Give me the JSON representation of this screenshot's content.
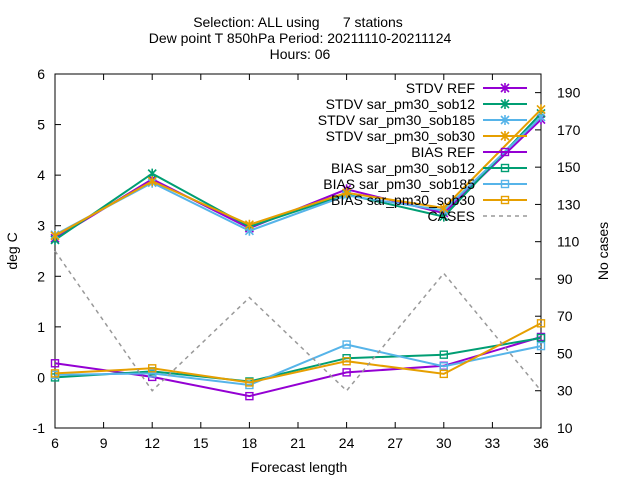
{
  "chart_data": {
    "type": "line",
    "title": [
      "Selection: ALL using      7 stations",
      "Dew point T 850hPa   Period: 20211110-20211124",
      "Hours: 06"
    ],
    "xlabel": "Forecast length",
    "ylabel": "deg C",
    "y2label": "No cases",
    "x": [
      6,
      12,
      18,
      24,
      30,
      36
    ],
    "xlim": [
      6,
      36
    ],
    "xticks": [
      "6",
      "9",
      "12",
      "15",
      "18",
      "21",
      "24",
      "27",
      "30",
      "33",
      "36"
    ],
    "ylim": [
      -1,
      6
    ],
    "yticks": [
      "-1",
      "0",
      "1",
      "2",
      "3",
      "4",
      "5",
      "6"
    ],
    "y2lim": [
      10,
      200
    ],
    "y2ticks": [
      "10",
      "30",
      "50",
      "70",
      "90",
      "110",
      "130",
      "150",
      "170",
      "190"
    ],
    "grid": false,
    "legend_position": "top-right",
    "series": [
      {
        "name": "STDV REF",
        "axis": "y",
        "color": "#9400d3",
        "marker": "x-star",
        "dash": "",
        "values": [
          2.75,
          3.92,
          2.95,
          3.72,
          3.25,
          5.1
        ]
      },
      {
        "name": "STDV sar_pm30_sob12",
        "axis": "y",
        "color": "#009e73",
        "marker": "x-star",
        "dash": "",
        "values": [
          2.72,
          4.03,
          2.98,
          3.62,
          3.18,
          5.22
        ]
      },
      {
        "name": "STDV sar_pm30_sob185",
        "axis": "y",
        "color": "#56b4e9",
        "marker": "x-star",
        "dash": "",
        "values": [
          2.82,
          3.85,
          2.9,
          3.6,
          3.3,
          5.15
        ]
      },
      {
        "name": "STDV sar_pm30_sob30",
        "axis": "y",
        "color": "#e69f00",
        "marker": "x-star",
        "dash": "",
        "values": [
          2.8,
          3.88,
          3.02,
          3.65,
          3.35,
          5.3
        ]
      },
      {
        "name": "BIAS REF",
        "axis": "y",
        "color": "#9400d3",
        "marker": "square",
        "dash": "",
        "values": [
          0.28,
          0.01,
          -0.37,
          0.1,
          0.23,
          0.8
        ]
      },
      {
        "name": "BIAS sar_pm30_sob12",
        "axis": "y",
        "color": "#009e73",
        "marker": "square",
        "dash": "",
        "values": [
          0.0,
          0.12,
          -0.08,
          0.38,
          0.45,
          0.78
        ]
      },
      {
        "name": "BIAS sar_pm30_sob185",
        "axis": "y",
        "color": "#56b4e9",
        "marker": "square",
        "dash": "",
        "values": [
          0.05,
          0.08,
          -0.15,
          0.65,
          0.22,
          0.62
        ]
      },
      {
        "name": "BIAS sar_pm30_sob30",
        "axis": "y",
        "color": "#e69f00",
        "marker": "square",
        "dash": "",
        "values": [
          0.08,
          0.18,
          -0.1,
          0.32,
          0.07,
          1.07
        ]
      },
      {
        "name": "CASES",
        "axis": "y2",
        "color": "#999999",
        "marker": "none",
        "dash": "4,4",
        "values": [
          105,
          30,
          80,
          30,
          93,
          30
        ]
      }
    ]
  }
}
